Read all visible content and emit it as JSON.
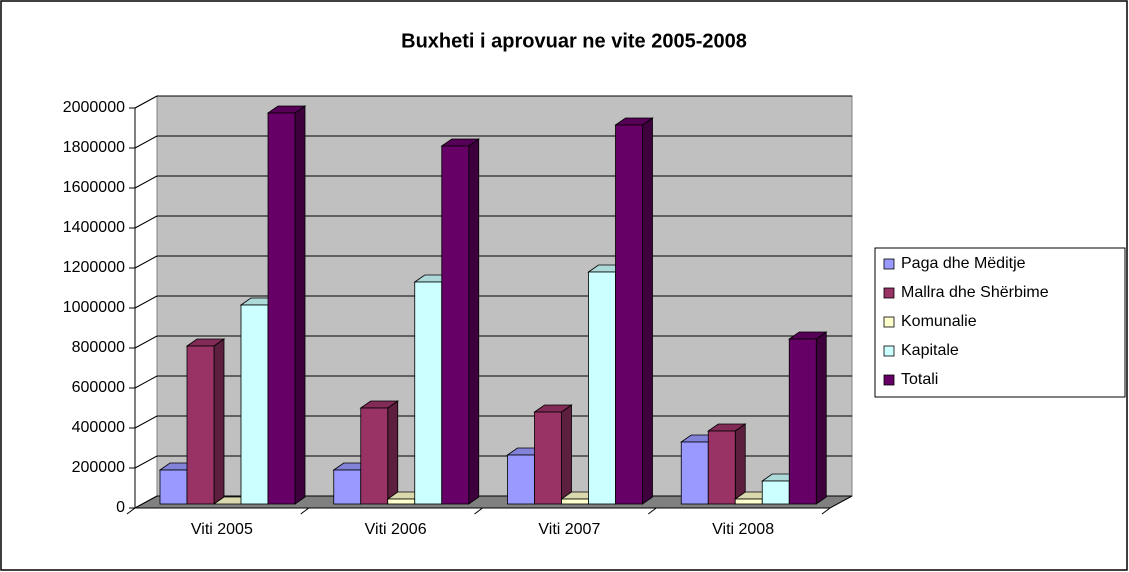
{
  "chart_data": {
    "type": "bar3d",
    "title": "Buxheti i aprovuar ne vite 2005-2008",
    "categories": [
      "Viti 2005",
      "Viti 2006",
      "Viti 2007",
      "Viti 2008"
    ],
    "series": [
      {
        "name": "Paga dhe Mëditje",
        "color": "#9999ff",
        "values": [
          170000,
          170000,
          245000,
          310000
        ]
      },
      {
        "name": "Mallra dhe Shërbime",
        "color": "#993366",
        "values": [
          790000,
          480000,
          460000,
          365000
        ]
      },
      {
        "name": "Komunalie",
        "color": "#ffffcc",
        "values": [
          0,
          25000,
          25000,
          25000
        ]
      },
      {
        "name": "Kapitale",
        "color": "#ccffff",
        "values": [
          995000,
          1110000,
          1160000,
          115000
        ]
      },
      {
        "name": "Totali",
        "color": "#660066",
        "values": [
          1955000,
          1790000,
          1895000,
          825000
        ]
      }
    ],
    "ylim": [
      0,
      2000000
    ],
    "yticks": [
      0,
      200000,
      400000,
      600000,
      800000,
      1000000,
      1200000,
      1400000,
      1600000,
      1800000,
      2000000
    ],
    "grid": true,
    "legend": "right"
  }
}
